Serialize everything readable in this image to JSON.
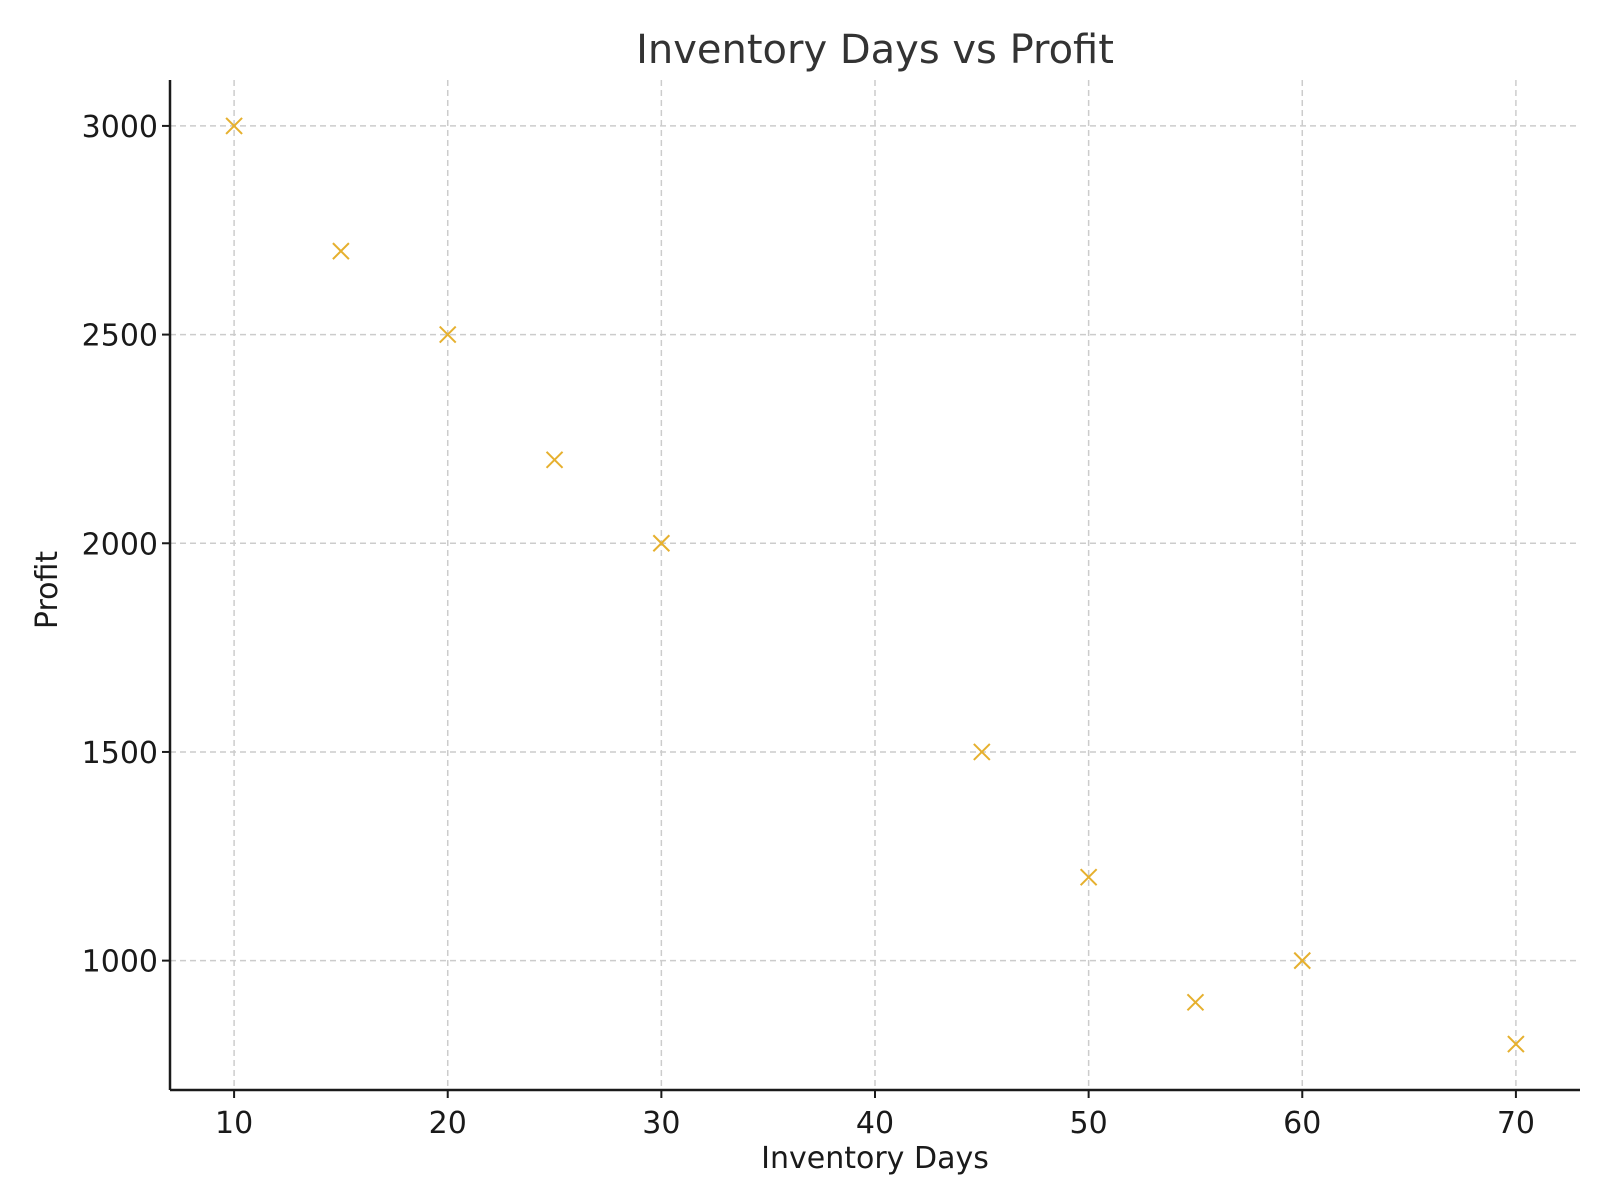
{
  "chart_data": {
    "type": "scatter",
    "title": "Inventory Days vs Profit",
    "xlabel": "Inventory Days",
    "ylabel": "Profit",
    "x": [
      10,
      15,
      20,
      25,
      30,
      45,
      50,
      55,
      60,
      70
    ],
    "y": [
      3000,
      2700,
      2500,
      2200,
      2000,
      1500,
      1200,
      900,
      1000,
      800
    ],
    "xlim": [
      7,
      73
    ],
    "ylim": [
      690,
      3110
    ],
    "xticks": [
      10,
      20,
      30,
      40,
      50,
      60,
      70
    ],
    "yticks": [
      1000,
      1500,
      2000,
      2500,
      3000
    ],
    "xtick_labels": [
      "10",
      "20",
      "30",
      "40",
      "50",
      "60",
      "70"
    ],
    "ytick_labels": [
      "1000",
      "1500",
      "2000",
      "2500",
      "3000"
    ],
    "marker": "x",
    "marker_color": "#E6B02E",
    "grid": true,
    "legend": "none"
  }
}
